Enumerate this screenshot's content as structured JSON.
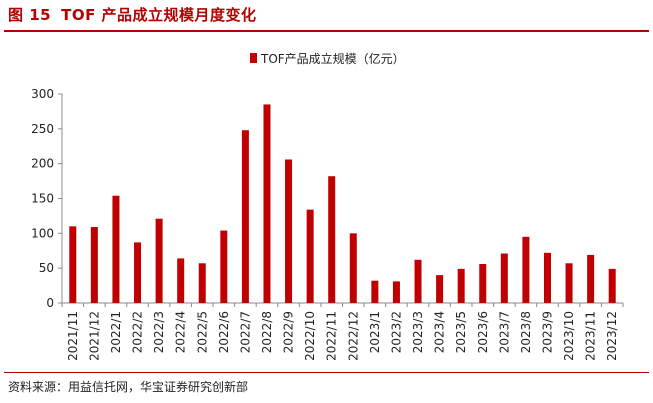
{
  "figure": {
    "number": "图 15",
    "title": "TOF 产品成立规模月度变化",
    "source": "资料来源：用益信托网，华宝证券研究创新部"
  },
  "colors": {
    "bar": "#c00000",
    "accent": "#b40000"
  },
  "chart_data": {
    "type": "bar",
    "title": "",
    "xlabel": "",
    "ylabel": "",
    "legend": {
      "position": "top-center",
      "entries": [
        "TOF产品成立规模（亿元）"
      ]
    },
    "grid": false,
    "ylim": [
      0,
      300
    ],
    "yticks": [
      0,
      50,
      100,
      150,
      200,
      250,
      300
    ],
    "categories": [
      "2021/11",
      "2021/12",
      "2022/1",
      "2022/2",
      "2022/3",
      "2022/4",
      "2022/5",
      "2022/6",
      "2022/7",
      "2022/8",
      "2022/9",
      "2022/10",
      "2022/11",
      "2022/12",
      "2023/1",
      "2023/2",
      "2023/3",
      "2023/4",
      "2023/5",
      "2023/6",
      "2023/7",
      "2023/8",
      "2023/9",
      "2023/10",
      "2023/11",
      "2023/12"
    ],
    "series": [
      {
        "name": "TOF产品成立规模（亿元）",
        "values": [
          110,
          109,
          154,
          87,
          121,
          64,
          57,
          104,
          248,
          285,
          206,
          134,
          182,
          100,
          32,
          31,
          62,
          40,
          49,
          56,
          71,
          95,
          72,
          57,
          69,
          49
        ]
      }
    ]
  }
}
